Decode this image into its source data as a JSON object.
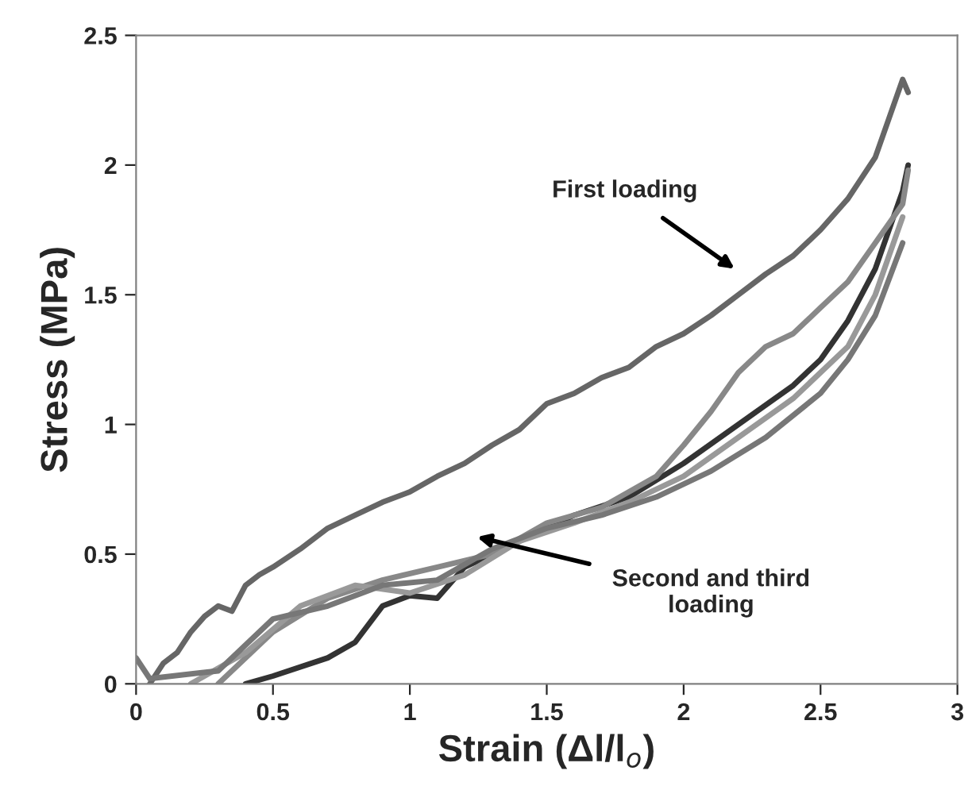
{
  "chart_data": {
    "type": "line",
    "xlabel": "Strain (Δl/l$_{o}$)",
    "ylabel": "Stress (MPa)",
    "xlim": [
      0,
      3
    ],
    "ylim": [
      0,
      2.5
    ],
    "xticks": [
      0,
      0.5,
      1,
      1.5,
      2,
      2.5,
      3
    ],
    "yticks": [
      0,
      0.5,
      1,
      1.5,
      2,
      2.5
    ],
    "grid": false,
    "legend": false,
    "marker": "none",
    "line_style": "solid",
    "series": [
      {
        "color": "#666666",
        "x": [
          0.05,
          0.1,
          0.15,
          0.2,
          0.25,
          0.3,
          0.35,
          0.4,
          0.45,
          0.5,
          0.6,
          0.7,
          0.8,
          0.9,
          1.0,
          1.1,
          1.2,
          1.3,
          1.4,
          1.5,
          1.6,
          1.7,
          1.8,
          1.9,
          2.0,
          2.1,
          2.2,
          2.3,
          2.4,
          2.5,
          2.6,
          2.7,
          2.75,
          2.8,
          2.82
        ],
        "values": [
          0.0,
          0.08,
          0.12,
          0.2,
          0.26,
          0.3,
          0.28,
          0.38,
          0.42,
          0.45,
          0.52,
          0.6,
          0.65,
          0.7,
          0.74,
          0.8,
          0.85,
          0.92,
          0.98,
          1.08,
          1.12,
          1.18,
          1.22,
          1.3,
          1.35,
          1.42,
          1.5,
          1.58,
          1.65,
          1.75,
          1.87,
          2.03,
          2.18,
          2.33,
          2.28
        ]
      },
      {
        "color": "#333333",
        "x": [
          0.4,
          0.5,
          0.7,
          0.8,
          0.9,
          1.0,
          1.1,
          1.2,
          1.4,
          1.5,
          1.6,
          1.8,
          2.0,
          2.2,
          2.4,
          2.5,
          2.6,
          2.7,
          2.8,
          2.82
        ],
        "values": [
          0.0,
          0.03,
          0.1,
          0.16,
          0.3,
          0.34,
          0.33,
          0.45,
          0.55,
          0.6,
          0.65,
          0.72,
          0.85,
          1.0,
          1.15,
          1.25,
          1.4,
          1.6,
          1.9,
          2.0
        ]
      },
      {
        "color": "#888888",
        "x": [
          0.3,
          0.5,
          0.7,
          0.9,
          1.1,
          1.3,
          1.5,
          1.7,
          1.9,
          2.0,
          2.1,
          2.2,
          2.3,
          2.4,
          2.5,
          2.6,
          2.7,
          2.8,
          2.82
        ],
        "values": [
          0.0,
          0.2,
          0.33,
          0.4,
          0.45,
          0.5,
          0.62,
          0.68,
          0.8,
          0.92,
          1.05,
          1.2,
          1.3,
          1.35,
          1.45,
          1.55,
          1.7,
          1.85,
          1.98
        ]
      },
      {
        "color": "#999999",
        "x": [
          0.2,
          0.4,
          0.6,
          0.8,
          1.0,
          1.2,
          1.4,
          1.6,
          1.8,
          2.0,
          2.2,
          2.4,
          2.6,
          2.7,
          2.8
        ],
        "values": [
          0.0,
          0.12,
          0.3,
          0.38,
          0.35,
          0.42,
          0.55,
          0.62,
          0.7,
          0.8,
          0.95,
          1.1,
          1.3,
          1.5,
          1.8
        ]
      },
      {
        "color": "#777777",
        "x": [
          0.0,
          0.05,
          0.3,
          0.5,
          0.7,
          0.9,
          1.1,
          1.3,
          1.5,
          1.7,
          1.9,
          2.1,
          2.3,
          2.5,
          2.6,
          2.7,
          2.8
        ],
        "values": [
          0.1,
          0.02,
          0.05,
          0.25,
          0.3,
          0.38,
          0.4,
          0.52,
          0.6,
          0.65,
          0.72,
          0.82,
          0.95,
          1.12,
          1.25,
          1.42,
          1.7
        ]
      }
    ],
    "annotations": [
      "First loading",
      "Second and third\nloading"
    ]
  }
}
